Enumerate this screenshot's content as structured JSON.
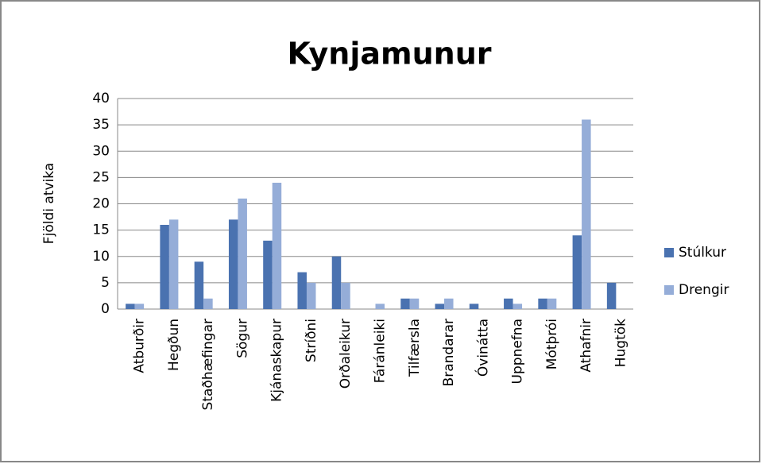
{
  "chart_data": {
    "type": "bar",
    "title": "Kynjamunur",
    "y_label": "Fjöldi atvika",
    "categories": [
      "Atburðir",
      "Hegðun",
      "Staðhæfingar",
      "Sögur",
      "Kjánaskapur",
      "Stríðni",
      "Orðaleikur",
      "Fáránleiki",
      "Tilfærsla",
      "Brandarar",
      "Óvinátta",
      "Uppnefna",
      "Mótþrói",
      "Athafnir",
      "Hugtök"
    ],
    "series": [
      {
        "name": "Stúlkur",
        "color": "#4a72b0",
        "values": [
          1,
          16,
          9,
          17,
          13,
          7,
          10,
          0,
          2,
          1,
          1,
          2,
          2,
          14,
          5
        ]
      },
      {
        "name": "Drengir",
        "color": "#95add8",
        "values": [
          1,
          17,
          2,
          21,
          24,
          5,
          5,
          1,
          2,
          2,
          0,
          1,
          2,
          36,
          0
        ]
      }
    ],
    "ylim": [
      0,
      40
    ],
    "yticks": [
      0,
      5,
      10,
      15,
      20,
      25,
      30,
      35,
      40
    ],
    "grid": true,
    "legend": "right"
  }
}
